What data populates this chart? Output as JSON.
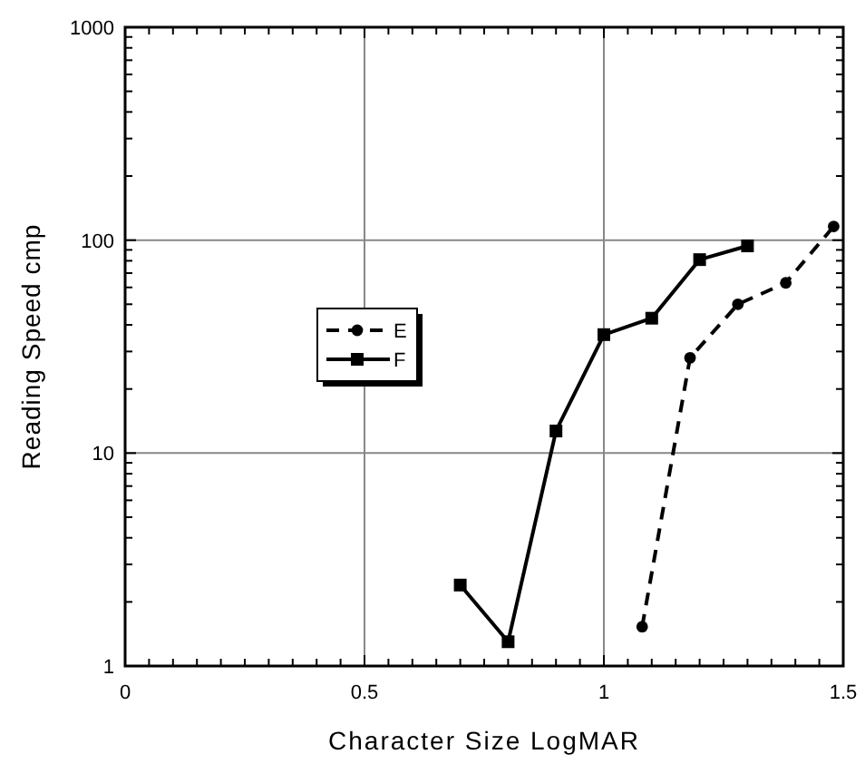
{
  "chart_data": {
    "type": "line",
    "xlabel": "Character Size LogMAR",
    "ylabel": "Reading Speed cmp",
    "xlim": [
      0,
      1.5
    ],
    "ylim": [
      1,
      1000
    ],
    "log": "y",
    "grid": true,
    "legend": "left",
    "xticks": [
      0,
      {
        "value": 0.05,
        "label": null
      },
      {
        "value": 0.1,
        "label": null
      },
      {
        "value": 0.15,
        "label": null
      },
      {
        "value": 0.2,
        "label": null
      },
      {
        "value": 0.25,
        "label": null
      },
      {
        "value": 0.3,
        "label": null
      },
      {
        "value": 0.35,
        "label": null
      },
      {
        "value": 0.4,
        "label": null
      },
      {
        "value": 0.45,
        "label": null
      },
      0.5,
      {
        "value": 0.55,
        "label": null
      },
      {
        "value": 0.6,
        "label": null
      },
      {
        "value": 0.65,
        "label": null
      },
      {
        "value": 0.7,
        "label": null
      },
      {
        "value": 0.75,
        "label": null
      },
      {
        "value": 0.8,
        "label": null
      },
      {
        "value": 0.85,
        "label": null
      },
      {
        "value": 0.9,
        "label": null
      },
      {
        "value": 0.95,
        "label": null
      },
      1,
      {
        "value": 1.05,
        "label": null
      },
      {
        "value": 1.1,
        "label": null
      },
      {
        "value": 1.15,
        "label": null
      },
      {
        "value": 1.2,
        "label": null
      },
      {
        "value": 1.25,
        "label": null
      },
      {
        "value": 1.3,
        "label": null
      },
      {
        "value": 1.35,
        "label": null
      },
      {
        "value": 1.4,
        "label": null
      },
      {
        "value": 1.45,
        "label": null
      },
      1.5
    ],
    "yticks": [
      1,
      {
        "value": 2,
        "label": null
      },
      {
        "value": 3,
        "label": null
      },
      {
        "value": 4,
        "label": null
      },
      {
        "value": 5,
        "label": null
      },
      {
        "value": 6,
        "label": null
      },
      {
        "value": 7,
        "label": null
      },
      {
        "value": 8,
        "label": null
      },
      {
        "value": 9,
        "label": null
      },
      10,
      {
        "value": 20,
        "label": null
      },
      {
        "value": 30,
        "label": null
      },
      {
        "value": 40,
        "label": null
      },
      {
        "value": 50,
        "label": null
      },
      {
        "value": 60,
        "label": null
      },
      {
        "value": 70,
        "label": null
      },
      {
        "value": 80,
        "label": null
      },
      {
        "value": 90,
        "label": null
      },
      100,
      {
        "value": 200,
        "label": null
      },
      {
        "value": 300,
        "label": null
      },
      {
        "value": 400,
        "label": null
      },
      {
        "value": 500,
        "label": null
      },
      {
        "value": 600,
        "label": null
      },
      {
        "value": 700,
        "label": null
      },
      {
        "value": 800,
        "label": null
      },
      {
        "value": 900,
        "label": null
      },
      1000
    ],
    "series": [
      {
        "name": "E",
        "color": "#000000",
        "marker": "circle",
        "line_style": "dashed",
        "x": [
          1.08,
          1.18,
          1.28,
          1.38,
          1.48
        ],
        "values": [
          1.53,
          28,
          50,
          63,
          116
        ]
      },
      {
        "name": "F",
        "color": "#000000",
        "marker": "square",
        "line_style": "solid",
        "x": [
          0.7,
          0.8,
          0.9,
          1.0,
          1.1,
          1.2,
          1.3
        ],
        "values": [
          2.4,
          1.3,
          12.7,
          36,
          43,
          81,
          94
        ]
      }
    ]
  }
}
